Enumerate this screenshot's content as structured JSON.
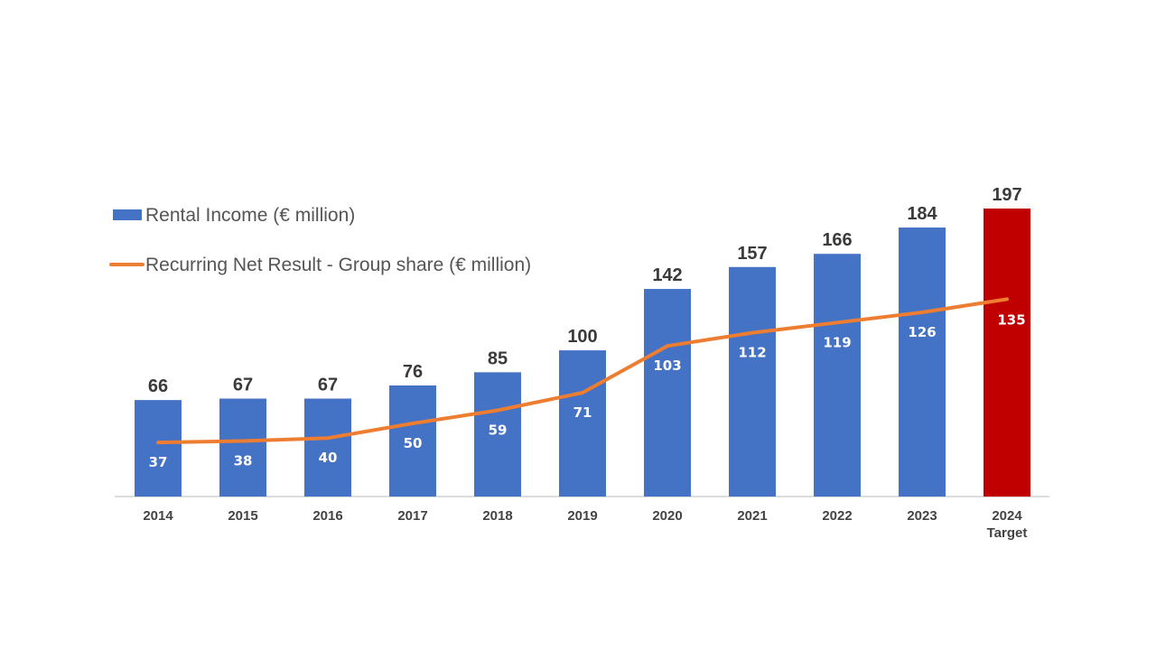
{
  "chart_data": {
    "type": "bar",
    "categories": [
      "2014",
      "2015",
      "2016",
      "2017",
      "2018",
      "2019",
      "2020",
      "2021",
      "2022",
      "2023",
      "2024"
    ],
    "category_sublabels": [
      "",
      "",
      "",
      "",
      "",
      "",
      "",
      "",
      "",
      "",
      "Target"
    ],
    "series": [
      {
        "name": "Rental Income (€ million)",
        "type": "bar",
        "values": [
          66,
          67,
          67,
          76,
          85,
          100,
          142,
          157,
          166,
          184,
          197
        ]
      },
      {
        "name": "Recurring Net Result - Group share (€ million)",
        "type": "line",
        "values": [
          37,
          38,
          40,
          50,
          59,
          71,
          103,
          112,
          119,
          126,
          135
        ]
      }
    ],
    "ylim": [
      0,
      197
    ],
    "grid": false,
    "legend": "top-left",
    "colors": {
      "bar": "#4472C4",
      "bar_highlight": "#C00000",
      "line": "#ED7D31"
    }
  }
}
